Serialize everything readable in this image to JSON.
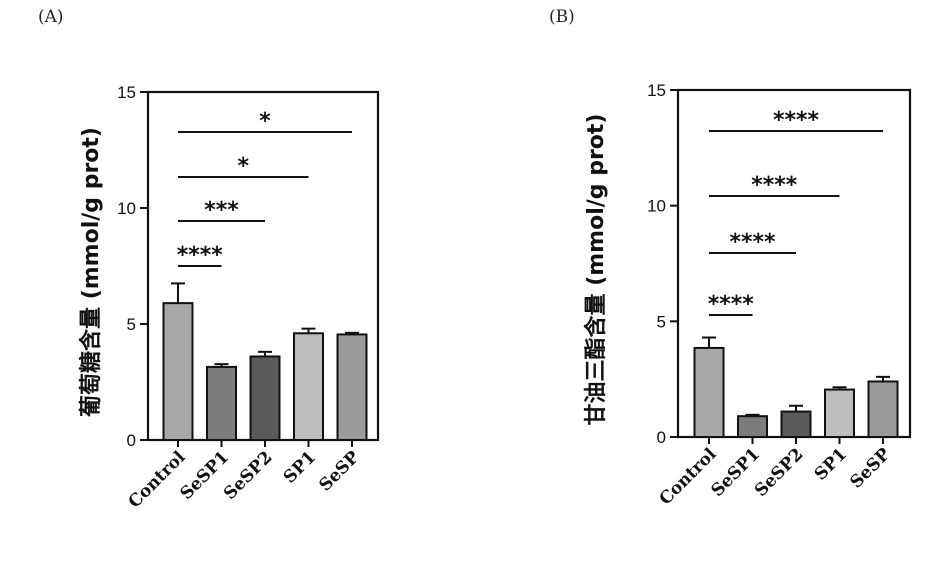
{
  "chart_data": [
    {
      "panel": "(A)",
      "type": "bar",
      "ylabel": "葡萄糖含量 (mmol/g prot)",
      "ylim": [
        0,
        15
      ],
      "yticks": [
        0,
        5,
        10,
        15
      ],
      "categories": [
        "Control",
        "SeSP1",
        "SeSP2",
        "SP1",
        "SeSP"
      ],
      "values": [
        5.9,
        3.15,
        3.6,
        4.6,
        4.55
      ],
      "errors": [
        0.85,
        0.12,
        0.2,
        0.2,
        0.07
      ],
      "fills": [
        "#a8a8a8",
        "#7c7c7c",
        "#5a5a5a",
        "#bdbdbd",
        "#9a9a9a"
      ],
      "significance": [
        {
          "from": 0,
          "to": 1,
          "label": "****"
        },
        {
          "from": 0,
          "to": 2,
          "label": "***"
        },
        {
          "from": 0,
          "to": 3,
          "label": "*"
        },
        {
          "from": 0,
          "to": 4,
          "label": "*"
        }
      ]
    },
    {
      "panel": "(B)",
      "type": "bar",
      "ylabel": "甘油三酯含量 (mmol/g prot)",
      "ylim": [
        0,
        15
      ],
      "yticks": [
        0,
        5,
        10,
        15
      ],
      "categories": [
        "Control",
        "SeSP1",
        "SeSP2",
        "SP1",
        "SeSP"
      ],
      "values": [
        3.85,
        0.9,
        1.1,
        2.05,
        2.4
      ],
      "errors": [
        0.45,
        0.06,
        0.25,
        0.1,
        0.2
      ],
      "fills": [
        "#a8a8a8",
        "#7c7c7c",
        "#5a5a5a",
        "#bdbdbd",
        "#9a9a9a"
      ],
      "significance": [
        {
          "from": 0,
          "to": 1,
          "label": "****"
        },
        {
          "from": 0,
          "to": 2,
          "label": "****"
        },
        {
          "from": 0,
          "to": 3,
          "label": "****"
        },
        {
          "from": 0,
          "to": 4,
          "label": "****"
        }
      ]
    }
  ]
}
